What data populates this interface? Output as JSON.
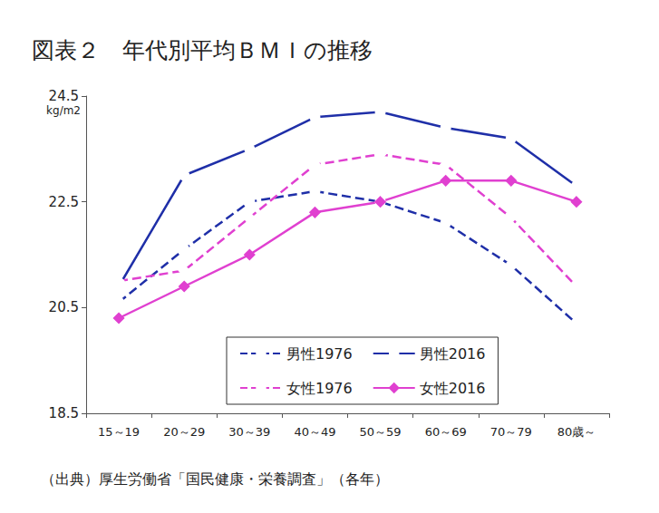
{
  "chart_data": {
    "type": "line",
    "title": "図表２　年代別平均ＢＭＩの推移",
    "y_label": "kg/m2",
    "annotations": [
      "（出典）厚生労働省「国民健康・栄養調査」（各年）"
    ],
    "categories": [
      "15～19",
      "20～29",
      "30～39",
      "40～49",
      "50～59",
      "60～69",
      "70～79",
      "80歳～"
    ],
    "series": [
      {
        "name": "男性1976",
        "color": "#1f2fa8",
        "marker": "emptyCircle",
        "line_style": "dashed",
        "values": [
          20.6,
          21.6,
          22.5,
          22.7,
          22.5,
          22.1,
          21.3,
          20.2
        ]
      },
      {
        "name": "男性2016",
        "color": "#1f2fa8",
        "marker": "emptyCircle",
        "line_style": "solid",
        "values": [
          20.9,
          23.0,
          23.5,
          24.1,
          24.2,
          23.9,
          23.7,
          22.8
        ]
      },
      {
        "name": "女性1976",
        "color": "#e040d0",
        "marker": "emptyDiamond",
        "line_style": "dashed",
        "values": [
          21.0,
          21.2,
          22.2,
          23.2,
          23.4,
          23.2,
          22.2,
          20.9
        ]
      },
      {
        "name": "女性2016",
        "color": "#e040d0",
        "marker": "diamond",
        "line_style": "solid",
        "values": [
          20.3,
          20.9,
          21.5,
          22.3,
          22.5,
          22.9,
          22.9,
          22.5
        ]
      }
    ],
    "ylim": [
      18.5,
      24.5
    ],
    "yticks": [
      18.5,
      20.5,
      22.5,
      24.5
    ],
    "grid": false,
    "legend": "bottom"
  }
}
